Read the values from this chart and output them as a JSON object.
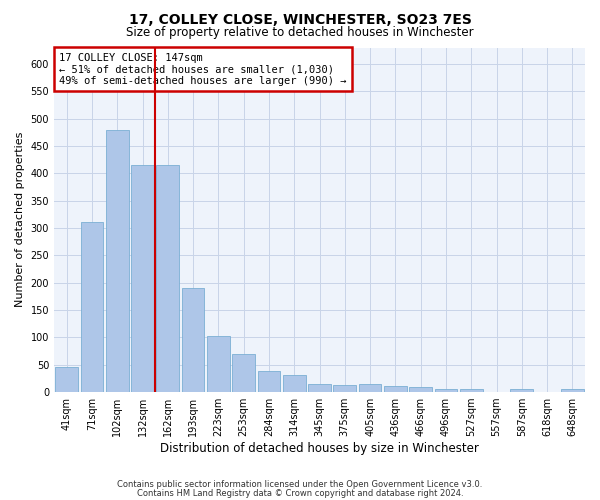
{
  "title": "17, COLLEY CLOSE, WINCHESTER, SO23 7ES",
  "subtitle": "Size of property relative to detached houses in Winchester",
  "xlabel": "Distribution of detached houses by size in Winchester",
  "ylabel": "Number of detached properties",
  "categories": [
    "41sqm",
    "71sqm",
    "102sqm",
    "132sqm",
    "162sqm",
    "193sqm",
    "223sqm",
    "253sqm",
    "284sqm",
    "314sqm",
    "345sqm",
    "375sqm",
    "405sqm",
    "436sqm",
    "466sqm",
    "496sqm",
    "527sqm",
    "557sqm",
    "587sqm",
    "618sqm",
    "648sqm"
  ],
  "values": [
    45,
    311,
    480,
    415,
    415,
    190,
    102,
    70,
    38,
    32,
    15,
    13,
    15,
    11,
    9,
    5,
    5,
    0,
    5,
    0,
    5
  ],
  "bar_color": "#aec6e8",
  "bar_edge_color": "#7bafd4",
  "vline_x_index": 4,
  "vline_color": "#cc0000",
  "annotation_text": "17 COLLEY CLOSE: 147sqm\n← 51% of detached houses are smaller (1,030)\n49% of semi-detached houses are larger (990) →",
  "annotation_box_color": "#ffffff",
  "annotation_box_edge": "#cc0000",
  "ylim": [
    0,
    630
  ],
  "yticks": [
    0,
    50,
    100,
    150,
    200,
    250,
    300,
    350,
    400,
    450,
    500,
    550,
    600
  ],
  "footnote_line1": "Contains HM Land Registry data © Crown copyright and database right 2024.",
  "footnote_line2": "Contains public sector information licensed under the Open Government Licence v3.0.",
  "bg_color": "#eef3fb",
  "grid_color": "#c8d4e8",
  "title_fontsize": 10,
  "subtitle_fontsize": 8.5,
  "ylabel_fontsize": 8,
  "xlabel_fontsize": 8.5,
  "tick_fontsize": 7,
  "annot_fontsize": 7.5,
  "footnote_fontsize": 6
}
